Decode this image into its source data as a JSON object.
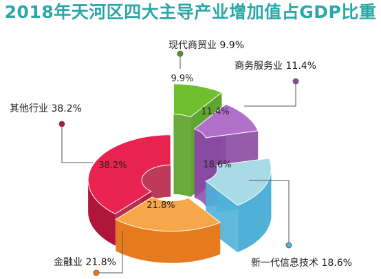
{
  "chart_data": {
    "type": "pie",
    "title": "2018年天河区四大主导产业增加值占GDP比重",
    "unit": "%",
    "slices": [
      {
        "label": "现代商贸业 9.9%",
        "pct_label": "9.9%",
        "value": 9.9,
        "color": "#6fbf2f",
        "side": "#4f9a1c"
      },
      {
        "label": "商务服务业 11.4%",
        "pct_label": "11.4%",
        "value": 11.4,
        "color": "#b06fc8",
        "side": "#8a4aa3"
      },
      {
        "label": "新一代信息技术 18.6%",
        "pct_label": "18.6%",
        "value": 18.6,
        "color": "#a8dbe6",
        "side": "#4fb0d8"
      },
      {
        "label": "金融业 21.8%",
        "pct_label": "21.8%",
        "value": 21.8,
        "color": "#f8a64a",
        "side": "#e57a1e"
      },
      {
        "label": "其他行业 38.2%",
        "pct_label": "38.2%",
        "value": 38.2,
        "color": "#e8234f",
        "side": "#b0163a"
      }
    ],
    "title_color": "#2aa7a6",
    "legend": "leader-lines"
  }
}
